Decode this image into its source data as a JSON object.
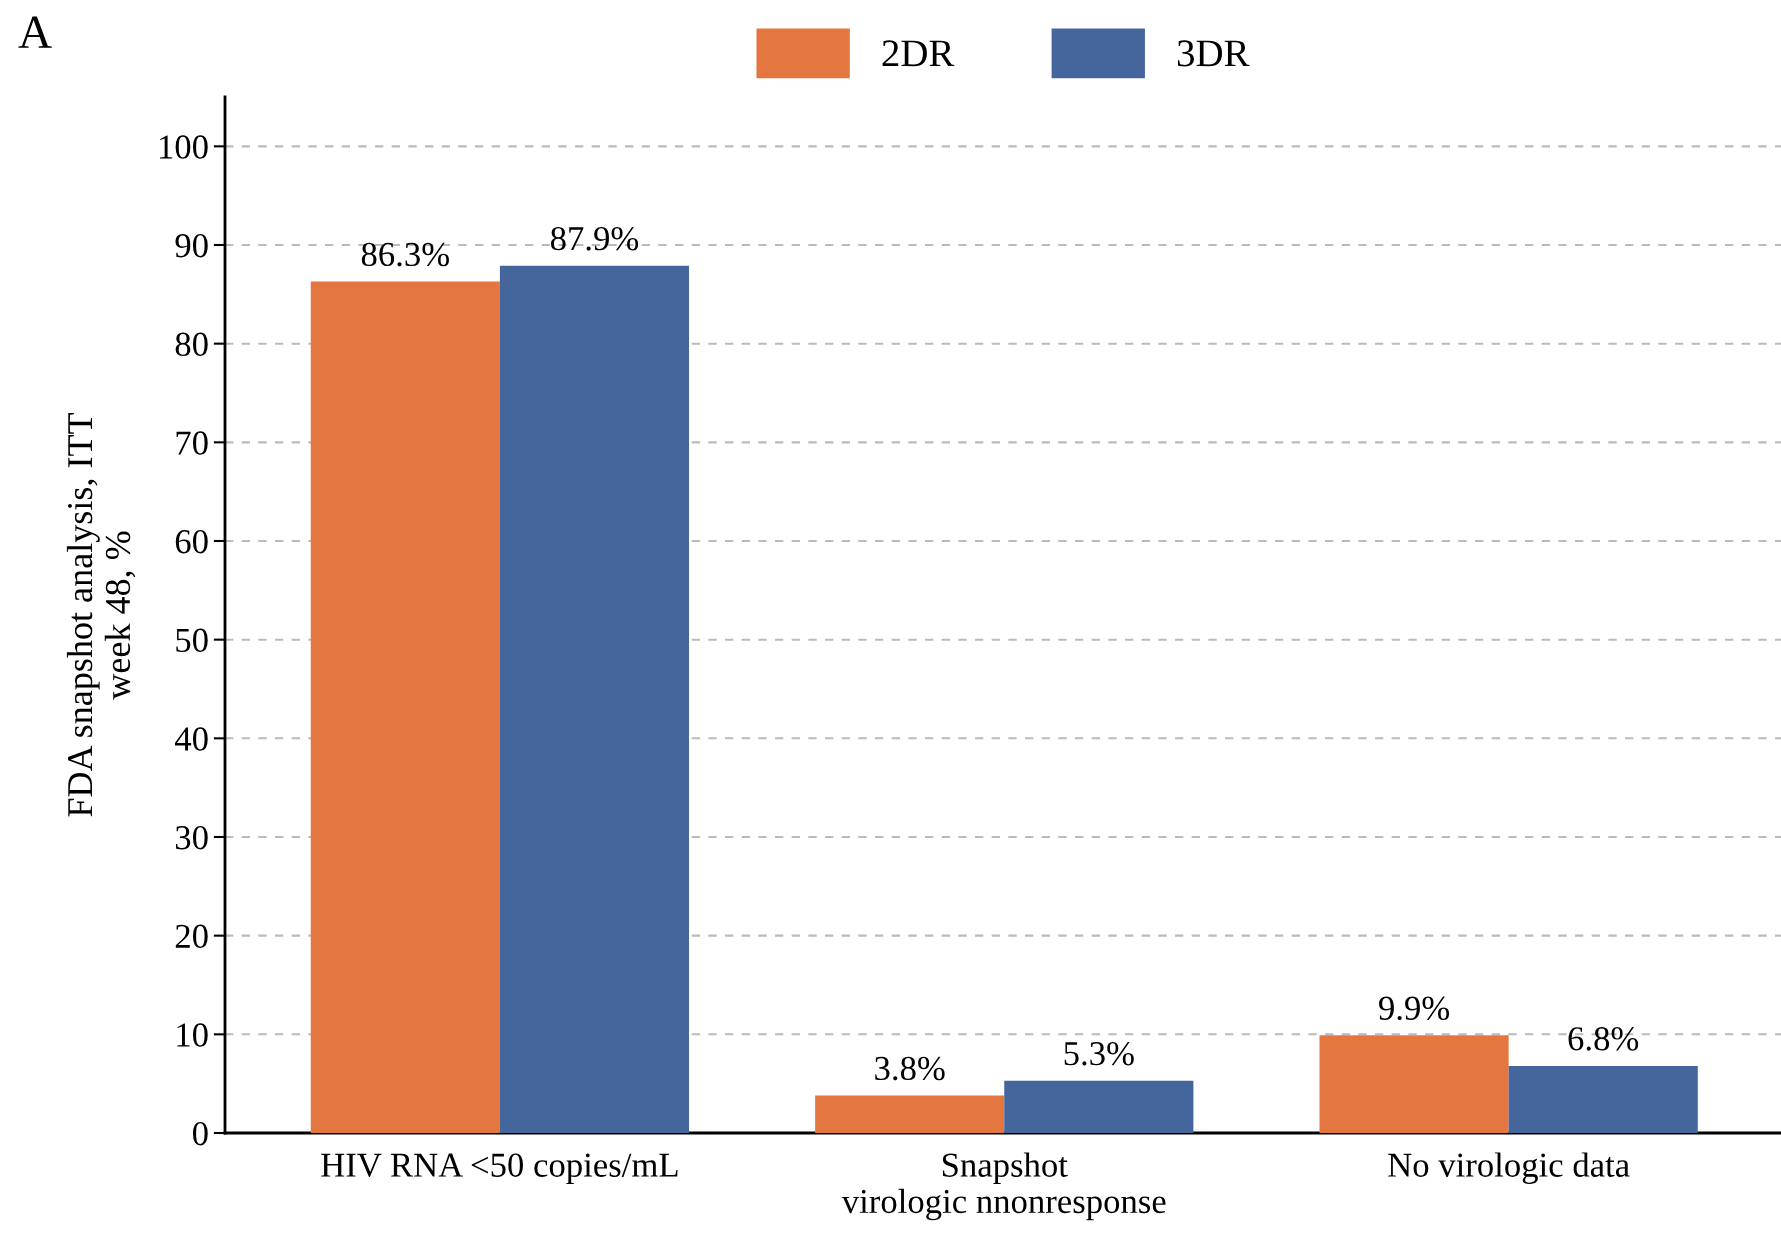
{
  "chart_data": {
    "type": "bar",
    "ylabel": "FDA snapshot analysis, ITT\nweek 48, %",
    "categories": [
      "HIV RNA <50 copies/mL",
      "Snapshot\nvirologic nnonresponse",
      "No virologic data"
    ],
    "series": [
      {
        "name": "2DR",
        "color": "#e4773f",
        "values": [
          86.3,
          3.8,
          9.9
        ],
        "value_labels": [
          "86.3%",
          "3.8%",
          "9.9%"
        ]
      },
      {
        "name": "3DR",
        "color": "#45659d",
        "values": [
          87.9,
          5.3,
          6.8
        ],
        "value_labels": [
          "87.9%",
          "5.3%",
          "6.8%"
        ]
      }
    ],
    "ylim": [
      0,
      105
    ],
    "yticks": [
      0,
      10,
      20,
      30,
      40,
      50,
      60,
      70,
      80,
      90,
      100
    ],
    "grid": "y",
    "legend": "top",
    "annotations": [
      "A"
    ]
  }
}
